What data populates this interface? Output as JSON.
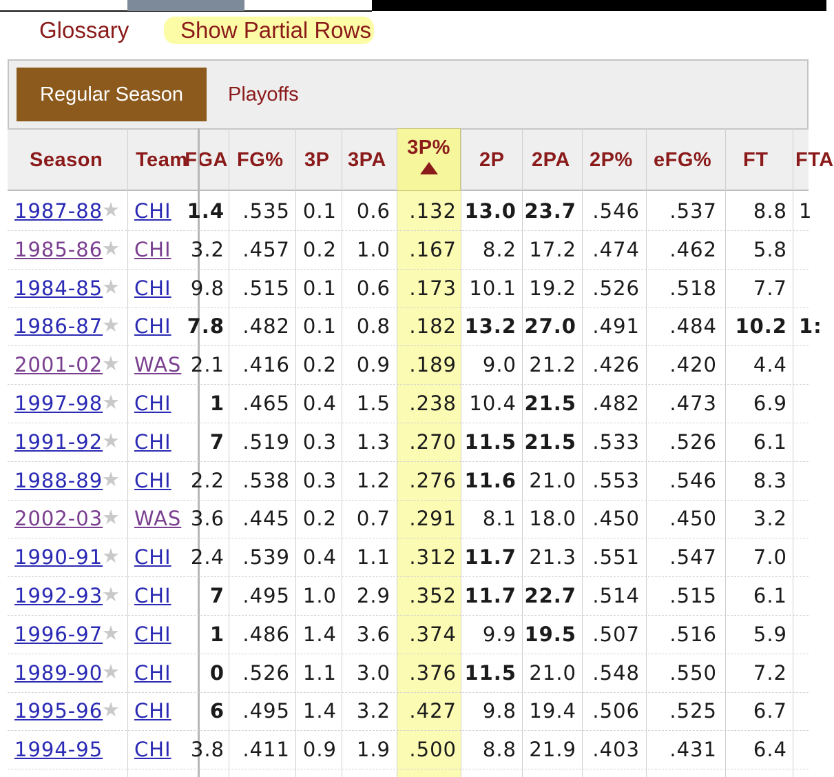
{
  "links": {
    "glossary": "Glossary",
    "partial_rows": "Show Partial Rows"
  },
  "tabs": {
    "regular_season": "Regular Season",
    "playoffs": "Playoffs"
  },
  "columns": {
    "season": "Season",
    "team": "Team",
    "fga": "FGA",
    "fg_pct": "FG%",
    "three_p": "3P",
    "three_pa": "3PA",
    "three_pct": "3P%",
    "two_p": "2P",
    "two_pa": "2PA",
    "two_pct": "2P%",
    "efg_pct": "eFG%",
    "ft": "FT",
    "fta": "FTA"
  },
  "sort": {
    "column": "3P%",
    "direction": "ascending",
    "indicator": "▲"
  },
  "rows": [
    {
      "season": "1987-88",
      "team": "CHI",
      "fga": "1.4",
      "fg_pct": ".535",
      "three_p": "0.1",
      "three_pa": "0.6",
      "three_pct": ".132",
      "two_p": "13.0",
      "two_pa": "23.7",
      "two_pct": ".546",
      "efg_pct": ".537",
      "ft": "8.8",
      "fta": "1",
      "bold": [
        "fga",
        "two_p",
        "two_pa"
      ],
      "visited": false,
      "star": "★"
    },
    {
      "season": "1985-86",
      "team": "CHI",
      "fga": "3.2",
      "fg_pct": ".457",
      "three_p": "0.2",
      "three_pa": "1.0",
      "three_pct": ".167",
      "two_p": "8.2",
      "two_pa": "17.2",
      "two_pct": ".474",
      "efg_pct": ".462",
      "ft": "5.8",
      "fta": "",
      "bold": [],
      "visited": true,
      "star": "★"
    },
    {
      "season": "1984-85",
      "team": "CHI",
      "fga": "9.8",
      "fg_pct": ".515",
      "three_p": "0.1",
      "three_pa": "0.6",
      "three_pct": ".173",
      "two_p": "10.1",
      "two_pa": "19.2",
      "two_pct": ".526",
      "efg_pct": ".518",
      "ft": "7.7",
      "fta": "",
      "bold": [],
      "visited": false,
      "star": "★"
    },
    {
      "season": "1986-87",
      "team": "CHI",
      "fga": "7.8",
      "fg_pct": ".482",
      "three_p": "0.1",
      "three_pa": "0.8",
      "three_pct": ".182",
      "two_p": "13.2",
      "two_pa": "27.0",
      "two_pct": ".491",
      "efg_pct": ".484",
      "ft": "10.2",
      "fta": "1:",
      "bold": [
        "fga",
        "two_p",
        "two_pa",
        "ft",
        "fta"
      ],
      "visited": false,
      "star": "★"
    },
    {
      "season": "2001-02",
      "team": "WAS",
      "fga": "2.1",
      "fg_pct": ".416",
      "three_p": "0.2",
      "three_pa": "0.9",
      "three_pct": ".189",
      "two_p": "9.0",
      "two_pa": "21.2",
      "two_pct": ".426",
      "efg_pct": ".420",
      "ft": "4.4",
      "fta": "",
      "bold": [],
      "visited": true,
      "star": "★"
    },
    {
      "season": "1997-98",
      "team": "CHI",
      "fga": "1",
      "fg_pct": ".465",
      "three_p": "0.4",
      "three_pa": "1.5",
      "three_pct": ".238",
      "two_p": "10.4",
      "two_pa": "21.5",
      "two_pct": ".482",
      "efg_pct": ".473",
      "ft": "6.9",
      "fta": "",
      "bold": [
        "fga",
        "two_pa"
      ],
      "visited": false,
      "star": "★"
    },
    {
      "season": "1991-92",
      "team": "CHI",
      "fga": "7",
      "fg_pct": ".519",
      "three_p": "0.3",
      "three_pa": "1.3",
      "three_pct": ".270",
      "two_p": "11.5",
      "two_pa": "21.5",
      "two_pct": ".533",
      "efg_pct": ".526",
      "ft": "6.1",
      "fta": "",
      "bold": [
        "fga",
        "two_p",
        "two_pa"
      ],
      "visited": false,
      "star": "★"
    },
    {
      "season": "1988-89",
      "team": "CHI",
      "fga": "2.2",
      "fg_pct": ".538",
      "three_p": "0.3",
      "three_pa": "1.2",
      "three_pct": ".276",
      "two_p": "11.6",
      "two_pa": "21.0",
      "two_pct": ".553",
      "efg_pct": ".546",
      "ft": "8.3",
      "fta": "",
      "bold": [
        "two_p"
      ],
      "visited": false,
      "star": "★"
    },
    {
      "season": "2002-03",
      "team": "WAS",
      "fga": "3.6",
      "fg_pct": ".445",
      "three_p": "0.2",
      "three_pa": "0.7",
      "three_pct": ".291",
      "two_p": "8.1",
      "two_pa": "18.0",
      "two_pct": ".450",
      "efg_pct": ".450",
      "ft": "3.2",
      "fta": "",
      "bold": [],
      "visited": true,
      "star": "★"
    },
    {
      "season": "1990-91",
      "team": "CHI",
      "fga": "2.4",
      "fg_pct": ".539",
      "three_p": "0.4",
      "three_pa": "1.1",
      "three_pct": ".312",
      "two_p": "11.7",
      "two_pa": "21.3",
      "two_pct": ".551",
      "efg_pct": ".547",
      "ft": "7.0",
      "fta": "",
      "bold": [
        "two_p"
      ],
      "visited": false,
      "star": "★"
    },
    {
      "season": "1992-93",
      "team": "CHI",
      "fga": "7",
      "fg_pct": ".495",
      "three_p": "1.0",
      "three_pa": "2.9",
      "three_pct": ".352",
      "two_p": "11.7",
      "two_pa": "22.7",
      "two_pct": ".514",
      "efg_pct": ".515",
      "ft": "6.1",
      "fta": "",
      "bold": [
        "fga",
        "two_p",
        "two_pa"
      ],
      "visited": false,
      "star": "★"
    },
    {
      "season": "1996-97",
      "team": "CHI",
      "fga": "1",
      "fg_pct": ".486",
      "three_p": "1.4",
      "three_pa": "3.6",
      "three_pct": ".374",
      "two_p": "9.9",
      "two_pa": "19.5",
      "two_pct": ".507",
      "efg_pct": ".516",
      "ft": "5.9",
      "fta": "",
      "bold": [
        "fga",
        "two_pa"
      ],
      "visited": false,
      "star": "★"
    },
    {
      "season": "1989-90",
      "team": "CHI",
      "fga": "0",
      "fg_pct": ".526",
      "three_p": "1.1",
      "three_pa": "3.0",
      "three_pct": ".376",
      "two_p": "11.5",
      "two_pa": "21.0",
      "two_pct": ".548",
      "efg_pct": ".550",
      "ft": "7.2",
      "fta": "",
      "bold": [
        "fga",
        "two_p"
      ],
      "visited": false,
      "star": "★"
    },
    {
      "season": "1995-96",
      "team": "CHI",
      "fga": "6",
      "fg_pct": ".495",
      "three_p": "1.4",
      "three_pa": "3.2",
      "three_pct": ".427",
      "two_p": "9.8",
      "two_pa": "19.4",
      "two_pct": ".506",
      "efg_pct": ".525",
      "ft": "6.7",
      "fta": "",
      "bold": [
        "fga"
      ],
      "visited": false,
      "star": "★"
    },
    {
      "season": "1994-95",
      "team": "CHI",
      "fga": "3.8",
      "fg_pct": ".411",
      "three_p": "0.9",
      "three_pa": "1.9",
      "three_pct": ".500",
      "two_p": "8.8",
      "two_pa": "21.9",
      "two_pct": ".403",
      "efg_pct": ".431",
      "ft": "6.4",
      "fta": "",
      "bold": [],
      "visited": false,
      "star": ""
    }
  ],
  "colors": {
    "accent": "#8b1a1a",
    "tab_active": "#8c5a1c",
    "highlight": "#fbfbb3",
    "link": "#2a2ab4",
    "visited": "#7a3f8f"
  }
}
